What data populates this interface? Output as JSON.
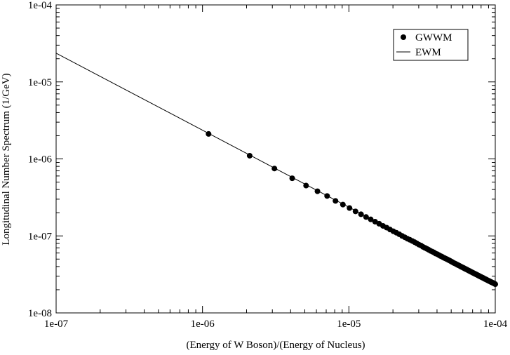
{
  "chart_data": {
    "type": "scatter",
    "title": "",
    "xlabel": "(Energy of W Boson)/(Energy of Nucleus)",
    "ylabel": "Longitudinal Number Spectrum (1/GeV)",
    "xscale": "log",
    "yscale": "log",
    "xlim": [
      1e-07,
      0.0001
    ],
    "ylim": [
      1e-08,
      0.0001
    ],
    "x_ticks": [
      "1e-07",
      "1e-06",
      "1e-05",
      "1e-04"
    ],
    "y_ticks": [
      "1e-08",
      "1e-07",
      "1e-06",
      "1e-05",
      "1e-04"
    ],
    "grid": false,
    "legend_position": "top-right",
    "series": [
      {
        "name": "GWWM",
        "style": "markers",
        "color": "#000000",
        "x": [
          1.1e-06,
          2.1e-06,
          3.1e-06,
          4.1e-06,
          5.1e-06,
          6.1e-06,
          7.1e-06,
          8.1e-06,
          9.1e-06,
          1.01e-05,
          1.11e-05,
          1.21e-05,
          1.31e-05,
          1.41e-05,
          1.51e-05,
          1.61e-05,
          1.71e-05,
          1.81e-05,
          1.91e-05,
          2.01e-05,
          2.11e-05,
          2.21e-05,
          2.31e-05,
          2.41e-05,
          2.51e-05,
          2.61e-05,
          2.71e-05,
          2.81e-05,
          2.91e-05,
          3.01e-05,
          3.11e-05,
          3.21e-05,
          3.31e-05,
          3.41e-05,
          3.51e-05,
          3.61e-05,
          3.71e-05,
          3.81e-05,
          3.91e-05,
          4.01e-05,
          4.11e-05,
          4.21e-05,
          4.31e-05,
          4.41e-05,
          4.51e-05,
          4.61e-05,
          4.71e-05,
          4.81e-05,
          4.91e-05,
          5.01e-05,
          5.11e-05,
          5.21e-05,
          5.31e-05,
          5.41e-05,
          5.51e-05,
          5.61e-05,
          5.71e-05,
          5.81e-05,
          5.91e-05,
          6.01e-05,
          6.11e-05,
          6.21e-05,
          6.31e-05,
          6.41e-05,
          6.51e-05,
          6.61e-05,
          6.71e-05,
          6.81e-05,
          6.91e-05,
          7.01e-05,
          7.11e-05,
          7.21e-05,
          7.31e-05,
          7.41e-05,
          7.51e-05,
          7.61e-05,
          7.71e-05,
          7.81e-05,
          7.91e-05,
          8.01e-05,
          8.11e-05,
          8.21e-05,
          8.31e-05,
          8.41e-05,
          8.51e-05,
          8.61e-05,
          8.71e-05,
          8.81e-05,
          8.91e-05,
          9.01e-05,
          9.11e-05,
          9.21e-05,
          9.31e-05,
          9.41e-05,
          9.51e-05,
          9.61e-05,
          9.71e-05,
          9.81e-05,
          9.91e-05,
          0.0001
        ],
        "y": [
          2.11e-06,
          1.1e-06,
          7.5e-07,
          5.6e-07,
          4.5e-07,
          3.8e-07,
          3.3e-07,
          2.85e-07,
          2.55e-07,
          2.3e-07,
          2.08e-07,
          1.91e-07,
          1.76e-07,
          1.64e-07,
          1.53e-07,
          1.44e-07,
          1.35e-07,
          1.28e-07,
          1.21e-07,
          1.15e-07,
          1.1e-07,
          1.05e-07,
          1e-07,
          9.6e-08,
          9.2e-08,
          8.9e-08,
          8.6e-08,
          8.3e-08,
          8e-08,
          7.7e-08,
          7.5e-08,
          7.2e-08,
          7e-08,
          6.8e-08,
          6.6e-08,
          6.4e-08,
          6.25e-08,
          6.1e-08,
          5.9e-08,
          5.8e-08,
          5.65e-08,
          5.5e-08,
          5.4e-08,
          5.25e-08,
          5.15e-08,
          5.05e-08,
          4.95e-08,
          4.85e-08,
          4.75e-08,
          4.65e-08,
          4.55e-08,
          4.45e-08,
          4.38e-08,
          4.3e-08,
          4.22e-08,
          4.15e-08,
          4.08e-08,
          4e-08,
          3.94e-08,
          3.88e-08,
          3.82e-08,
          3.75e-08,
          3.7e-08,
          3.64e-08,
          3.59e-08,
          3.53e-08,
          3.48e-08,
          3.43e-08,
          3.38e-08,
          3.33e-08,
          3.29e-08,
          3.24e-08,
          3.2e-08,
          3.16e-08,
          3.12e-08,
          3.08e-08,
          3.04e-08,
          3e-08,
          2.96e-08,
          2.93e-08,
          2.89e-08,
          2.86e-08,
          2.83e-08,
          2.79e-08,
          2.76e-08,
          2.73e-08,
          2.7e-08,
          2.67e-08,
          2.64e-08,
          2.61e-08,
          2.59e-08,
          2.56e-08,
          2.53e-08,
          2.51e-08,
          2.48e-08,
          2.46e-08,
          2.44e-08,
          2.41e-08,
          2.39e-08,
          2.36e-08
        ]
      },
      {
        "name": "EWM",
        "style": "line",
        "color": "#000000",
        "x": [
          1e-07,
          0.0001
        ],
        "y": [
          2.36e-05,
          2.36e-08
        ]
      }
    ]
  }
}
